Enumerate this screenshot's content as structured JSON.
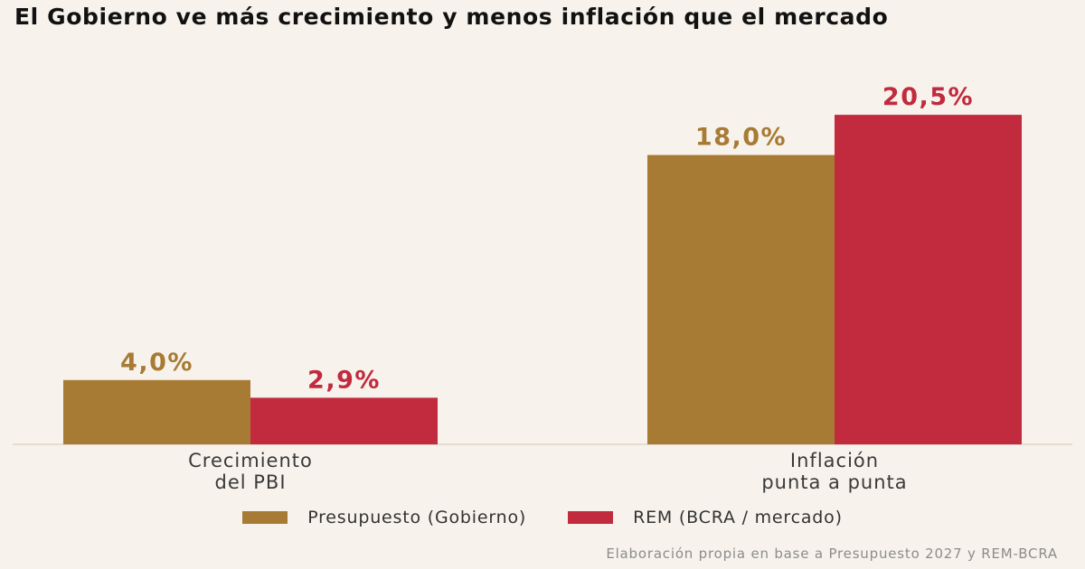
{
  "chart_data": {
    "type": "bar",
    "title": "El Gobierno ve más crecimiento y menos inflación que el mercado",
    "categories": [
      "Crecimiento\ndel PBI",
      "Inflación\npunta a punta"
    ],
    "series": [
      {
        "name": "Presupuesto (Gobierno)",
        "values": [
          4.0,
          18.0
        ],
        "value_labels": [
          "4,0%",
          "18,0%"
        ],
        "color": "#a87b35"
      },
      {
        "name": "REM (BCRA / mercado)",
        "values": [
          2.9,
          20.5
        ],
        "value_labels": [
          "2,9%",
          "20,5%"
        ],
        "color": "#c22a3e"
      }
    ],
    "ylim": [
      0,
      22
    ],
    "grid": false,
    "legend_position": "bottom-center",
    "xlabel": "",
    "ylabel": "",
    "source": "Elaboración propia en base a Presupuesto 2027 y REM-BCRA"
  }
}
